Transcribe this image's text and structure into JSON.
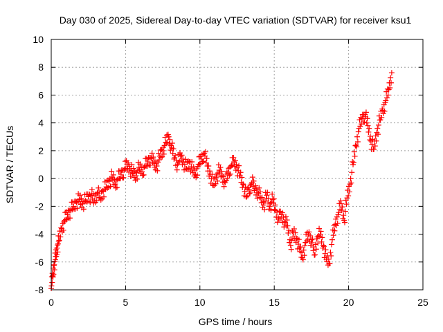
{
  "chart_data": {
    "type": "scatter",
    "title": "Day 030 of 2025, Sidereal Day-to-day VTEC variation (SDTVAR) for receiver ksu1",
    "xlabel": "GPS time / hours",
    "ylabel": "SDTVAR / TECUs",
    "xlim": [
      0,
      25
    ],
    "ylim": [
      -8,
      10
    ],
    "xticks": [
      "0",
      "5",
      "10",
      "15",
      "20",
      "25"
    ],
    "yticks": [
      "-8",
      "-6",
      "-4",
      "-2",
      "0",
      "2",
      "4",
      "6",
      "8",
      "10"
    ],
    "grid": true,
    "marker": "+",
    "color": "#ff0000",
    "series": [
      {
        "name": "ksu1",
        "x": [
          0.0,
          0.1,
          0.2,
          0.3,
          0.4,
          0.5,
          0.7,
          0.9,
          1.1,
          1.3,
          1.5,
          1.7,
          1.9,
          2.1,
          2.3,
          2.5,
          2.7,
          2.9,
          3.1,
          3.3,
          3.5,
          3.7,
          3.9,
          4.1,
          4.3,
          4.5,
          4.7,
          4.9,
          5.1,
          5.3,
          5.5,
          5.7,
          5.9,
          6.1,
          6.3,
          6.5,
          6.7,
          6.9,
          7.1,
          7.3,
          7.5,
          7.7,
          7.9,
          8.1,
          8.3,
          8.5,
          8.7,
          8.9,
          9.1,
          9.3,
          9.5,
          9.7,
          9.9,
          10.1,
          10.3,
          10.5,
          10.7,
          10.9,
          11.1,
          11.3,
          11.5,
          11.7,
          11.9,
          12.1,
          12.3,
          12.5,
          12.7,
          12.9,
          13.1,
          13.3,
          13.5,
          13.7,
          13.9,
          14.1,
          14.3,
          14.5,
          14.7,
          14.9,
          15.1,
          15.3,
          15.5,
          15.7,
          15.9,
          16.1,
          16.3,
          16.5,
          16.7,
          16.9,
          17.1,
          17.3,
          17.5,
          17.7,
          17.9,
          18.1,
          18.3,
          18.5,
          18.7,
          18.9,
          19.1,
          19.3,
          19.5,
          19.7,
          19.9,
          20.1,
          20.3,
          20.5,
          20.7,
          20.9,
          21.1,
          21.3,
          21.5,
          21.7,
          21.9,
          22.1,
          22.3,
          22.5,
          22.7,
          22.9
        ],
        "y": [
          -7.9,
          -7.0,
          -6.2,
          -5.6,
          -5.0,
          -4.5,
          -3.6,
          -3.0,
          -2.6,
          -2.3,
          -2.0,
          -1.7,
          -1.5,
          -1.8,
          -1.6,
          -1.3,
          -1.2,
          -1.6,
          -1.0,
          -1.4,
          -0.9,
          -0.6,
          -0.2,
          0.1,
          -0.4,
          0.0,
          0.3,
          0.6,
          1.0,
          0.7,
          0.4,
          0.2,
          0.8,
          0.5,
          0.9,
          1.2,
          1.5,
          1.1,
          0.9,
          1.6,
          2.0,
          2.6,
          3.0,
          2.2,
          1.5,
          1.0,
          1.6,
          1.2,
          0.7,
          1.2,
          0.6,
          0.3,
          1.0,
          1.4,
          1.8,
          0.9,
          0.3,
          -0.5,
          0.1,
          0.6,
          0.2,
          -0.3,
          0.4,
          0.9,
          1.2,
          0.8,
          0.2,
          -0.4,
          -1.3,
          -0.8,
          -0.3,
          -0.7,
          -1.0,
          -1.4,
          -1.9,
          -1.2,
          -2.0,
          -1.5,
          -2.3,
          -2.9,
          -2.6,
          -3.1,
          -3.4,
          -4.8,
          -3.9,
          -4.3,
          -5.0,
          -5.7,
          -4.6,
          -4.0,
          -4.4,
          -5.5,
          -4.2,
          -4.0,
          -4.8,
          -5.8,
          -6.1,
          -4.4,
          -3.3,
          -2.6,
          -1.8,
          -3.0,
          -1.4,
          -0.4,
          1.0,
          2.4,
          3.6,
          4.3,
          4.6,
          3.8,
          2.7,
          2.1,
          3.3,
          4.2,
          4.9,
          5.6,
          6.4,
          7.6
        ]
      }
    ]
  }
}
